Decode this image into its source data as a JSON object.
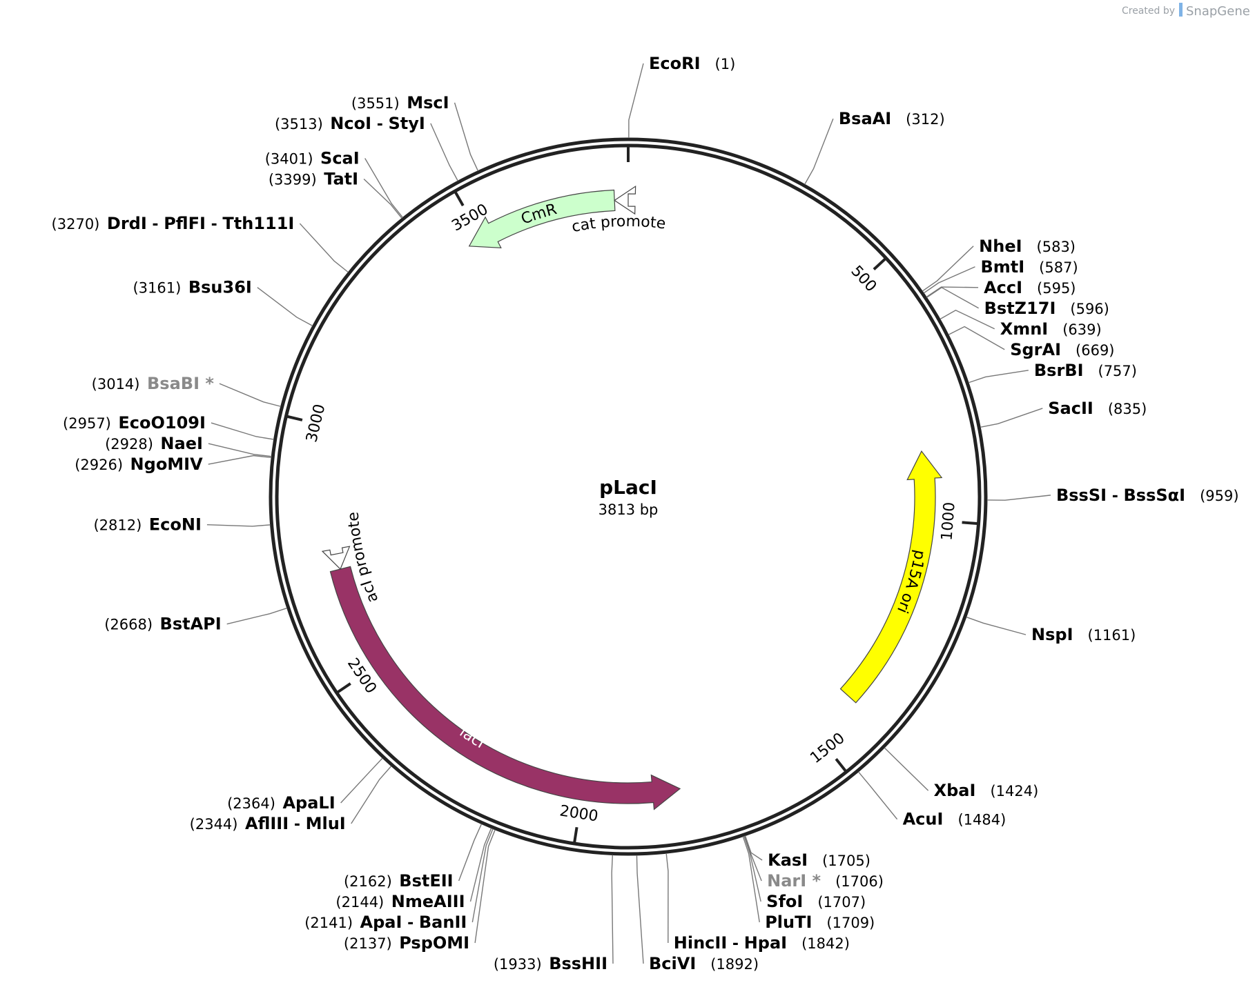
{
  "credit": {
    "prefix": "Created by",
    "brand": "SnapGene"
  },
  "plasmid": {
    "name": "pLacI",
    "size_label": "3813 bp",
    "total_bp": 3813
  },
  "ticks": [
    {
      "bp": 0,
      "label": ""
    },
    {
      "bp": 500,
      "label": "500"
    },
    {
      "bp": 1000,
      "label": "1000"
    },
    {
      "bp": 1500,
      "label": "1500"
    },
    {
      "bp": 2000,
      "label": "2000"
    },
    {
      "bp": 2500,
      "label": "2500"
    },
    {
      "bp": 3000,
      "label": "3000"
    },
    {
      "bp": 3500,
      "label": "3500"
    }
  ],
  "features": [
    {
      "name": "CmR",
      "type": "gene",
      "color": "#ccffcc",
      "start": 3470,
      "end": 3785,
      "direction": "reverse"
    },
    {
      "name": "cat promoter",
      "type": "promoter",
      "color": "#ffffff",
      "start": 3785,
      "end": 3813,
      "direction": "reverse"
    },
    {
      "name": "p15A ori",
      "type": "origin",
      "color": "#ffff00",
      "start": 860,
      "end": 1400,
      "direction": "reverse"
    },
    {
      "name": "lacI",
      "type": "gene",
      "color": "#993366",
      "start": 1800,
      "end": 2710,
      "direction": "reverse"
    },
    {
      "name": "lacI promoter",
      "type": "promoter",
      "color": "#ffffff",
      "start": 2710,
      "end": 2742,
      "direction": "reverse"
    }
  ],
  "sites": [
    {
      "names": [
        "EcoRI"
      ],
      "pos": "(1)",
      "bp": 1,
      "side": "right"
    },
    {
      "names": [
        "BsaAI"
      ],
      "pos": "(312)",
      "bp": 312,
      "side": "right"
    },
    {
      "names": [
        "NheI"
      ],
      "pos": "(583)",
      "bp": 583,
      "side": "right"
    },
    {
      "names": [
        "BmtI"
      ],
      "pos": "(587)",
      "bp": 587,
      "side": "right"
    },
    {
      "names": [
        "AccI"
      ],
      "pos": "(595)",
      "bp": 595,
      "side": "right"
    },
    {
      "names": [
        "BstZ17I"
      ],
      "pos": "(596)",
      "bp": 596,
      "side": "right"
    },
    {
      "names": [
        "XmnI"
      ],
      "pos": "(639)",
      "bp": 639,
      "side": "right"
    },
    {
      "names": [
        "SgrAI"
      ],
      "pos": "(669)",
      "bp": 669,
      "side": "right"
    },
    {
      "names": [
        "BsrBI"
      ],
      "pos": "(757)",
      "bp": 757,
      "side": "right"
    },
    {
      "names": [
        "SacII"
      ],
      "pos": "(835)",
      "bp": 835,
      "side": "right"
    },
    {
      "names": [
        "BssSI",
        "BssSαI"
      ],
      "pos": "(959)",
      "bp": 959,
      "side": "right"
    },
    {
      "names": [
        "NspI"
      ],
      "pos": "(1161)",
      "bp": 1161,
      "side": "right"
    },
    {
      "names": [
        "XbaI"
      ],
      "pos": "(1424)",
      "bp": 1424,
      "side": "right"
    },
    {
      "names": [
        "AcuI"
      ],
      "pos": "(1484)",
      "bp": 1484,
      "side": "right"
    },
    {
      "names": [
        "KasI"
      ],
      "pos": "(1705)",
      "bp": 1705,
      "side": "right"
    },
    {
      "names": [
        "NarI"
      ],
      "star": "*",
      "pos": "(1706)",
      "bp": 1706,
      "side": "right",
      "gray": true
    },
    {
      "names": [
        "SfoI"
      ],
      "pos": "(1707)",
      "bp": 1707,
      "side": "right"
    },
    {
      "names": [
        "PluTI"
      ],
      "pos": "(1709)",
      "bp": 1709,
      "side": "right"
    },
    {
      "names": [
        "HincII",
        "HpaI"
      ],
      "pos": "(1842)",
      "bp": 1842,
      "side": "right"
    },
    {
      "names": [
        "BciVI"
      ],
      "pos": "(1892)",
      "bp": 1892,
      "side": "right"
    },
    {
      "names": [
        "BssHII"
      ],
      "pos": "(1933)",
      "bp": 1933,
      "side": "left"
    },
    {
      "names": [
        "PspOMI"
      ],
      "pos": "(2137)",
      "bp": 2137,
      "side": "left"
    },
    {
      "names": [
        "ApaI",
        "BanII"
      ],
      "pos": "(2141)",
      "bp": 2141,
      "side": "left"
    },
    {
      "names": [
        "NmeAIII"
      ],
      "pos": "(2144)",
      "bp": 2144,
      "side": "left"
    },
    {
      "names": [
        "BstEII"
      ],
      "pos": "(2162)",
      "bp": 2162,
      "side": "left"
    },
    {
      "names": [
        "AflIII",
        "MluI"
      ],
      "pos": "(2344)",
      "bp": 2344,
      "side": "left"
    },
    {
      "names": [
        "ApaLI"
      ],
      "pos": "(2364)",
      "bp": 2364,
      "side": "left"
    },
    {
      "names": [
        "BstAPI"
      ],
      "pos": "(2668)",
      "bp": 2668,
      "side": "left"
    },
    {
      "names": [
        "EcoNI"
      ],
      "pos": "(2812)",
      "bp": 2812,
      "side": "left"
    },
    {
      "names": [
        "NgoMIV"
      ],
      "pos": "(2926)",
      "bp": 2926,
      "side": "left"
    },
    {
      "names": [
        "NaeI"
      ],
      "pos": "(2928)",
      "bp": 2928,
      "side": "left"
    },
    {
      "names": [
        "EcoO109I"
      ],
      "pos": "(2957)",
      "bp": 2957,
      "side": "left"
    },
    {
      "names": [
        "BsaBI"
      ],
      "star": "*",
      "pos": "(3014)",
      "bp": 3014,
      "side": "left",
      "gray": true
    },
    {
      "names": [
        "Bsu36I"
      ],
      "pos": "(3161)",
      "bp": 3161,
      "side": "left"
    },
    {
      "names": [
        "DrdI",
        "PflFI",
        "Tth111I"
      ],
      "pos": "(3270)",
      "bp": 3270,
      "side": "left"
    },
    {
      "names": [
        "TatI"
      ],
      "pos": "(3399)",
      "bp": 3399,
      "side": "left"
    },
    {
      "names": [
        "ScaI"
      ],
      "pos": "(3401)",
      "bp": 3401,
      "side": "left"
    },
    {
      "names": [
        "NcoI",
        "StyI"
      ],
      "pos": "(3513)",
      "bp": 3513,
      "side": "left"
    },
    {
      "names": [
        "MscI"
      ],
      "pos": "(3551)",
      "bp": 3551,
      "side": "left"
    }
  ]
}
